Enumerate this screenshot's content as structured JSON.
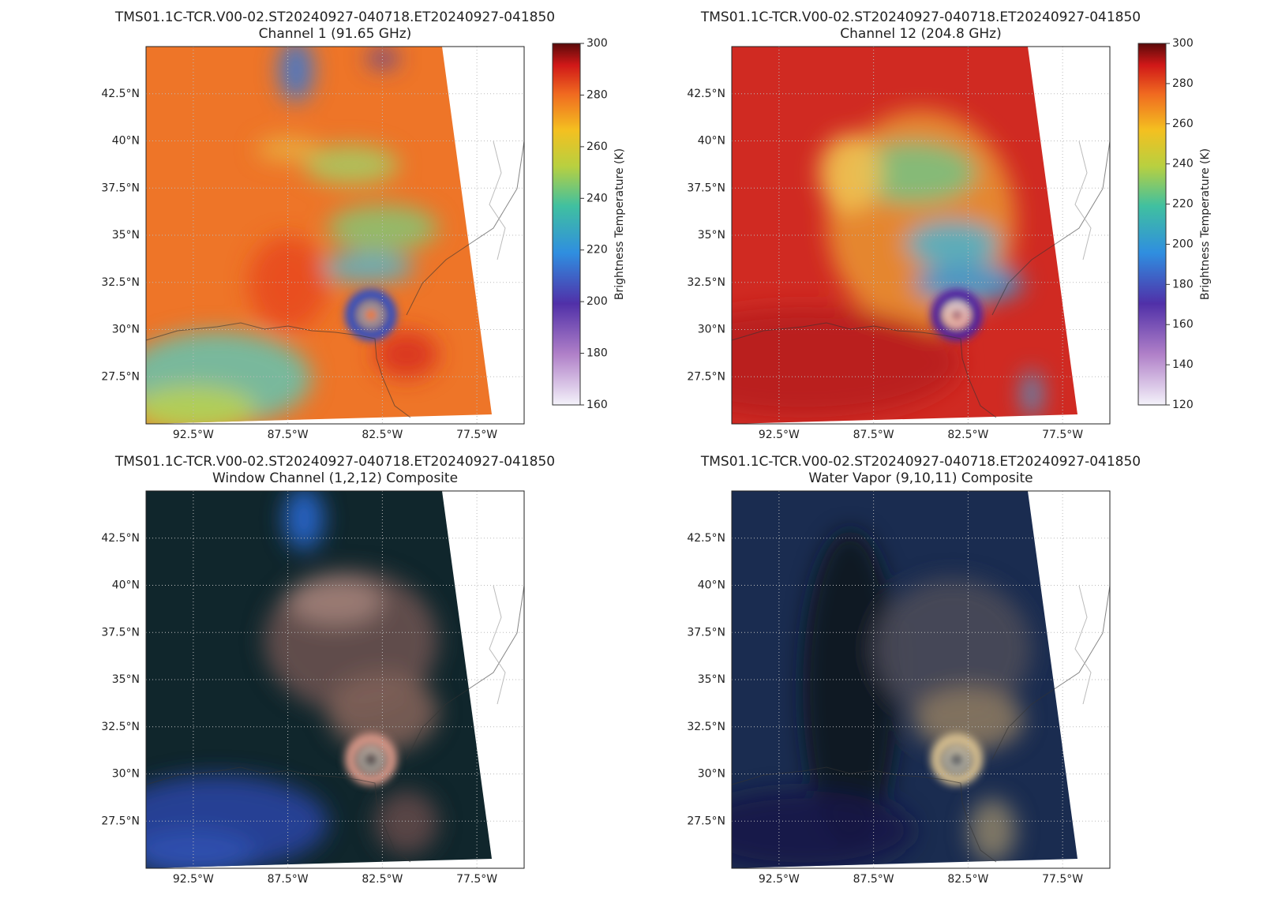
{
  "chart_data": [
    {
      "type": "map",
      "title": "TMS01.1C-TCR.V00-02.ST20240927-040718.ET20240927-041850",
      "subtitle": "Channel 1 (91.65 GHz)",
      "xlim": [
        -95,
        -75
      ],
      "ylim": [
        25,
        45
      ],
      "xticks": [
        {
          "value": -92.5,
          "label": "92.5°W"
        },
        {
          "value": -87.5,
          "label": "87.5°W"
        },
        {
          "value": -82.5,
          "label": "82.5°W"
        },
        {
          "value": -77.5,
          "label": "77.5°W"
        }
      ],
      "yticks": [
        {
          "value": 42.5,
          "label": "42.5°N"
        },
        {
          "value": 40,
          "label": "40°N"
        },
        {
          "value": 37.5,
          "label": "37.5°N"
        },
        {
          "value": 35,
          "label": "35°N"
        },
        {
          "value": 32.5,
          "label": "32.5°N"
        },
        {
          "value": 30,
          "label": "30°N"
        },
        {
          "value": 27.5,
          "label": "27.5°N"
        }
      ],
      "grid": true,
      "colorbar": {
        "label": "Brightness Temperature (K)",
        "lim": [
          160,
          300
        ],
        "ticks": [
          160,
          180,
          200,
          220,
          240,
          260,
          280,
          300
        ]
      }
    },
    {
      "type": "map",
      "title": "TMS01.1C-TCR.V00-02.ST20240927-040718.ET20240927-041850",
      "subtitle": "Channel 12 (204.8 GHz)",
      "xlim": [
        -95,
        -75
      ],
      "ylim": [
        25,
        45
      ],
      "xticks": [
        {
          "value": -92.5,
          "label": "92.5°W"
        },
        {
          "value": -87.5,
          "label": "87.5°W"
        },
        {
          "value": -82.5,
          "label": "82.5°W"
        },
        {
          "value": -77.5,
          "label": "77.5°W"
        }
      ],
      "yticks": [
        {
          "value": 42.5,
          "label": "42.5°N"
        },
        {
          "value": 40,
          "label": "40°N"
        },
        {
          "value": 37.5,
          "label": "37.5°N"
        },
        {
          "value": 35,
          "label": "35°N"
        },
        {
          "value": 32.5,
          "label": "32.5°N"
        },
        {
          "value": 30,
          "label": "30°N"
        },
        {
          "value": 27.5,
          "label": "27.5°N"
        }
      ],
      "grid": true,
      "colorbar": {
        "label": "Brightness Temperature (K)",
        "lim": [
          120,
          300
        ],
        "ticks": [
          120,
          140,
          160,
          180,
          200,
          220,
          240,
          260,
          280,
          300
        ]
      }
    },
    {
      "type": "map",
      "title": "TMS01.1C-TCR.V00-02.ST20240927-040718.ET20240927-041850",
      "subtitle": "Window Channel (1,2,12) Composite",
      "xlim": [
        -95,
        -75
      ],
      "ylim": [
        25,
        45
      ],
      "xticks": [
        {
          "value": -92.5,
          "label": "92.5°W"
        },
        {
          "value": -87.5,
          "label": "87.5°W"
        },
        {
          "value": -82.5,
          "label": "82.5°W"
        },
        {
          "value": -77.5,
          "label": "77.5°W"
        }
      ],
      "yticks": [
        {
          "value": 42.5,
          "label": "42.5°N"
        },
        {
          "value": 40,
          "label": "40°N"
        },
        {
          "value": 37.5,
          "label": "37.5°N"
        },
        {
          "value": 35,
          "label": "35°N"
        },
        {
          "value": 32.5,
          "label": "32.5°N"
        },
        {
          "value": 30,
          "label": "30°N"
        },
        {
          "value": 27.5,
          "label": "27.5°N"
        }
      ],
      "grid": true
    },
    {
      "type": "map",
      "title": "TMS01.1C-TCR.V00-02.ST20240927-040718.ET20240927-041850",
      "subtitle": "Water Vapor (9,10,11) Composite",
      "xlim": [
        -95,
        -75
      ],
      "ylim": [
        25,
        45
      ],
      "xticks": [
        {
          "value": -92.5,
          "label": "92.5°W"
        },
        {
          "value": -87.5,
          "label": "87.5°W"
        },
        {
          "value": -82.5,
          "label": "82.5°W"
        },
        {
          "value": -77.5,
          "label": "77.5°W"
        }
      ],
      "yticks": [
        {
          "value": 42.5,
          "label": "42.5°N"
        },
        {
          "value": 40,
          "label": "40°N"
        },
        {
          "value": 37.5,
          "label": "37.5°N"
        },
        {
          "value": 35,
          "label": "35°N"
        },
        {
          "value": 32.5,
          "label": "32.5°N"
        },
        {
          "value": 30,
          "label": "30°N"
        },
        {
          "value": 27.5,
          "label": "27.5°N"
        }
      ],
      "grid": true
    }
  ]
}
